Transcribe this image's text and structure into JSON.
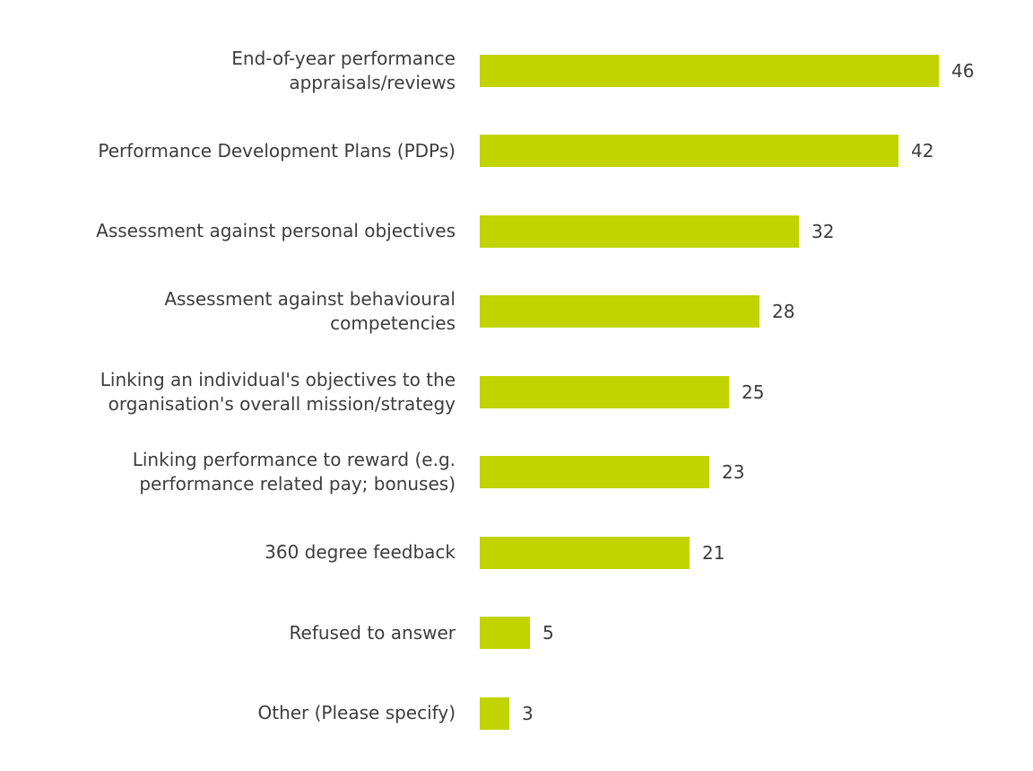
{
  "chart_data": {
    "type": "bar",
    "orientation": "horizontal",
    "title": "",
    "xlabel": "",
    "ylabel": "",
    "legend": false,
    "grid": false,
    "data_labels": true,
    "xlim": [
      0,
      46
    ],
    "background_color": "#ffffff",
    "bar_color": "#c1d400",
    "label_color": "#3d3d3d",
    "categories": [
      "End-of-year performance\nappraisals/reviews",
      "Performance Development Plans (PDPs)",
      "Assessment against personal objectives",
      "Assessment against behavioural\ncompetencies",
      "Linking an individual's objectives to the\norganisation's overall mission/strategy",
      "Linking performance to reward (e.g.\nperformance related pay; bonuses)",
      "360 degree feedback",
      "Refused to answer",
      "Other (Please specify)"
    ],
    "values": [
      46,
      42,
      32,
      28,
      25,
      23,
      21,
      5,
      3
    ]
  }
}
